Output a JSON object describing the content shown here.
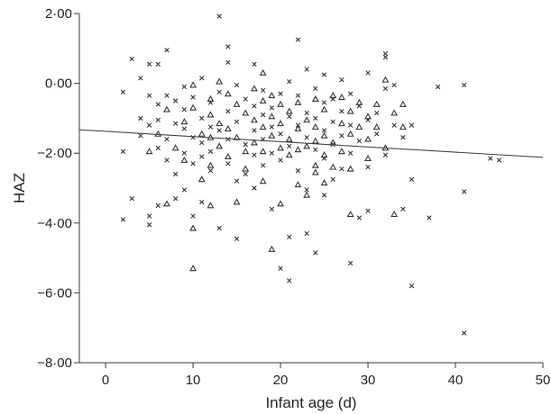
{
  "chart_data": {
    "type": "scatter",
    "title": "",
    "xlabel": "Infant age (d)",
    "ylabel": "HAZ",
    "xlim": [
      -3,
      50
    ],
    "ylim": [
      -8,
      2
    ],
    "x_ticks": [
      0,
      10,
      20,
      30,
      40,
      50
    ],
    "x_tick_labels": [
      "0",
      "10",
      "20",
      "30",
      "40",
      "50"
    ],
    "y_ticks": [
      -8,
      -6,
      -4,
      -2,
      0,
      2
    ],
    "y_tick_labels": [
      "−8·00",
      "−6·00",
      "−4·00",
      "−2·00",
      "0·00",
      "2·00"
    ],
    "grid": false,
    "legend": "none",
    "series": [
      {
        "marker": "x",
        "points": [
          [
            2,
            -0.25
          ],
          [
            2,
            -1.95
          ],
          [
            2,
            -3.9
          ],
          [
            3,
            0.7
          ],
          [
            3,
            -3.3
          ],
          [
            4,
            0.15
          ],
          [
            4,
            -1.0
          ],
          [
            4,
            -1.5
          ],
          [
            5,
            0.55
          ],
          [
            5,
            -0.35
          ],
          [
            5,
            -1.2
          ],
          [
            5,
            -3.8
          ],
          [
            5,
            -4.05
          ],
          [
            6,
            0.55
          ],
          [
            6,
            -0.6
          ],
          [
            6,
            -1.05
          ],
          [
            6,
            -1.85
          ],
          [
            6,
            -3.5
          ],
          [
            7,
            0.95
          ],
          [
            7,
            -0.35
          ],
          [
            7,
            -1.6
          ],
          [
            7,
            -2.2
          ],
          [
            8,
            -0.5
          ],
          [
            8,
            -1.15
          ],
          [
            8,
            -2.6
          ],
          [
            8,
            -3.3
          ],
          [
            9,
            -0.1
          ],
          [
            9,
            -0.75
          ],
          [
            9,
            -1.3
          ],
          [
            9,
            -2.0
          ],
          [
            9,
            -3.05
          ],
          [
            10,
            -0.4
          ],
          [
            10,
            -1.55
          ],
          [
            10,
            -2.3
          ],
          [
            10,
            -3.8
          ],
          [
            11,
            0.15
          ],
          [
            11,
            -1.0
          ],
          [
            11,
            -1.7
          ],
          [
            11,
            -2.1
          ],
          [
            11,
            -3.4
          ],
          [
            12,
            -0.55
          ],
          [
            12,
            -1.25
          ],
          [
            12,
            -1.95
          ],
          [
            12,
            -2.5
          ],
          [
            13,
            1.92
          ],
          [
            13,
            -0.25
          ],
          [
            13,
            -1.35
          ],
          [
            13,
            -4.15
          ],
          [
            14,
            0.6
          ],
          [
            14,
            1.05
          ],
          [
            14,
            -0.8
          ],
          [
            14,
            -1.6
          ],
          [
            14,
            -2.3
          ],
          [
            15,
            -0.05
          ],
          [
            15,
            -1.1
          ],
          [
            15,
            -2.8
          ],
          [
            15,
            -4.45
          ],
          [
            16,
            -0.45
          ],
          [
            16,
            -1.75
          ],
          [
            16,
            -2.6
          ],
          [
            17,
            0.55
          ],
          [
            17,
            -0.65
          ],
          [
            17,
            -1.35
          ],
          [
            17,
            -2.05
          ],
          [
            17,
            -3.0
          ],
          [
            18,
            -0.2
          ],
          [
            18,
            -0.9
          ],
          [
            18,
            -1.6
          ],
          [
            18,
            -2.35
          ],
          [
            19,
            -0.7
          ],
          [
            19,
            -1.25
          ],
          [
            19,
            -2.0
          ],
          [
            19,
            -3.6
          ],
          [
            20,
            -0.3
          ],
          [
            20,
            -1.45
          ],
          [
            20,
            -2.2
          ],
          [
            20,
            -5.3
          ],
          [
            21,
            0.05
          ],
          [
            21,
            -0.95
          ],
          [
            21,
            -1.8
          ],
          [
            21,
            -4.4
          ],
          [
            21,
            -5.65
          ],
          [
            22,
            1.25
          ],
          [
            22,
            -0.35
          ],
          [
            22,
            -1.2
          ],
          [
            22,
            -2.5
          ],
          [
            23,
            0.4
          ],
          [
            23,
            -0.85
          ],
          [
            23,
            -1.55
          ],
          [
            23,
            -3.05
          ],
          [
            23,
            -4.3
          ],
          [
            24,
            -0.15
          ],
          [
            24,
            -1.0
          ],
          [
            24,
            -1.9
          ],
          [
            24,
            -4.85
          ],
          [
            25,
            0.25
          ],
          [
            25,
            -0.55
          ],
          [
            25,
            -1.35
          ],
          [
            25,
            -2.15
          ],
          [
            25,
            -3.2
          ],
          [
            26,
            -0.45
          ],
          [
            26,
            -1.1
          ],
          [
            26,
            -1.75
          ],
          [
            26,
            -2.75
          ],
          [
            27,
            0.1
          ],
          [
            27,
            -0.8
          ],
          [
            27,
            -1.5
          ],
          [
            27,
            -2.45
          ],
          [
            28,
            -0.3
          ],
          [
            28,
            -1.2
          ],
          [
            28,
            -2.0
          ],
          [
            28,
            -5.15
          ],
          [
            29,
            -0.65
          ],
          [
            29,
            -1.65
          ],
          [
            29,
            -3.85
          ],
          [
            30,
            0.3
          ],
          [
            30,
            -1.05
          ],
          [
            30,
            -2.4
          ],
          [
            30,
            -3.65
          ],
          [
            31,
            -0.85
          ],
          [
            31,
            -1.45
          ],
          [
            32,
            0.85
          ],
          [
            32,
            0.75
          ],
          [
            32,
            -0.15
          ],
          [
            32,
            -2.05
          ],
          [
            33,
            -0.05
          ],
          [
            33,
            -1.2
          ],
          [
            34,
            -1.55
          ],
          [
            34,
            -3.6
          ],
          [
            35,
            -1.2
          ],
          [
            35,
            -2.75
          ],
          [
            35,
            -5.8
          ],
          [
            37,
            -3.85
          ],
          [
            38,
            -0.1
          ],
          [
            41,
            -0.05
          ],
          [
            41,
            -3.1
          ],
          [
            41,
            -7.15
          ],
          [
            44,
            -2.15
          ],
          [
            45,
            -2.2
          ]
        ]
      },
      {
        "marker": "triangle",
        "points": [
          [
            5,
            -1.95
          ],
          [
            6,
            -1.45
          ],
          [
            7,
            -0.75
          ],
          [
            7,
            -3.45
          ],
          [
            8,
            -1.85
          ],
          [
            9,
            -1.1
          ],
          [
            9,
            -2.2
          ],
          [
            10,
            -0.05
          ],
          [
            10,
            -0.7
          ],
          [
            10,
            -4.15
          ],
          [
            10,
            -5.3
          ],
          [
            11,
            -1.45
          ],
          [
            11,
            -2.75
          ],
          [
            12,
            -0.45
          ],
          [
            12,
            -0.9
          ],
          [
            12,
            -1.55
          ],
          [
            12,
            -2.35
          ],
          [
            12,
            -3.5
          ],
          [
            13,
            0.05
          ],
          [
            13,
            -1.15
          ],
          [
            13,
            -1.8
          ],
          [
            14,
            -0.3
          ],
          [
            14,
            -1.3
          ],
          [
            14,
            -2.1
          ],
          [
            15,
            -0.6
          ],
          [
            15,
            -1.55
          ],
          [
            15,
            -3.4
          ],
          [
            16,
            -0.85
          ],
          [
            16,
            -1.95
          ],
          [
            16,
            -2.45
          ],
          [
            17,
            -0.15
          ],
          [
            17,
            -1.05
          ],
          [
            17,
            -1.7
          ],
          [
            18,
            0.3
          ],
          [
            18,
            -0.5
          ],
          [
            18,
            -1.25
          ],
          [
            18,
            -1.95
          ],
          [
            18,
            -2.8
          ],
          [
            19,
            -0.35
          ],
          [
            19,
            -0.95
          ],
          [
            19,
            -1.5
          ],
          [
            19,
            -4.75
          ],
          [
            20,
            -0.6
          ],
          [
            20,
            -1.15
          ],
          [
            20,
            -1.85
          ],
          [
            20,
            -3.45
          ],
          [
            21,
            -0.8
          ],
          [
            21,
            -1.6
          ],
          [
            21,
            -2.05
          ],
          [
            22,
            -0.55
          ],
          [
            22,
            -1.3
          ],
          [
            22,
            -1.9
          ],
          [
            22,
            -2.9
          ],
          [
            23,
            -1.05
          ],
          [
            23,
            -1.8
          ],
          [
            23,
            -3.2
          ],
          [
            24,
            -0.45
          ],
          [
            24,
            -1.25
          ],
          [
            24,
            -1.65
          ],
          [
            24,
            -2.35
          ],
          [
            24,
            -2.55
          ],
          [
            25,
            -0.75
          ],
          [
            25,
            -1.5
          ],
          [
            25,
            -2.05
          ],
          [
            25,
            -2.85
          ],
          [
            26,
            -0.35
          ],
          [
            26,
            -1.7
          ],
          [
            26,
            -2.4
          ],
          [
            27,
            -0.4
          ],
          [
            27,
            -1.15
          ],
          [
            27,
            -1.95
          ],
          [
            28,
            -0.8
          ],
          [
            28,
            -1.45
          ],
          [
            28,
            -2.45
          ],
          [
            28,
            -3.75
          ],
          [
            29,
            -0.55
          ],
          [
            29,
            -1.25
          ],
          [
            30,
            -0.95
          ],
          [
            30,
            -1.6
          ],
          [
            30,
            -2.15
          ],
          [
            31,
            -0.6
          ],
          [
            31,
            -1.25
          ],
          [
            32,
            0.1
          ],
          [
            32,
            -1.85
          ],
          [
            33,
            -0.85
          ],
          [
            33,
            -3.75
          ],
          [
            34,
            -0.6
          ],
          [
            34,
            -1.25
          ]
        ]
      }
    ],
    "trend_line": {
      "x": [
        -3,
        50
      ],
      "y": [
        -1.33,
        -2.12
      ]
    }
  }
}
